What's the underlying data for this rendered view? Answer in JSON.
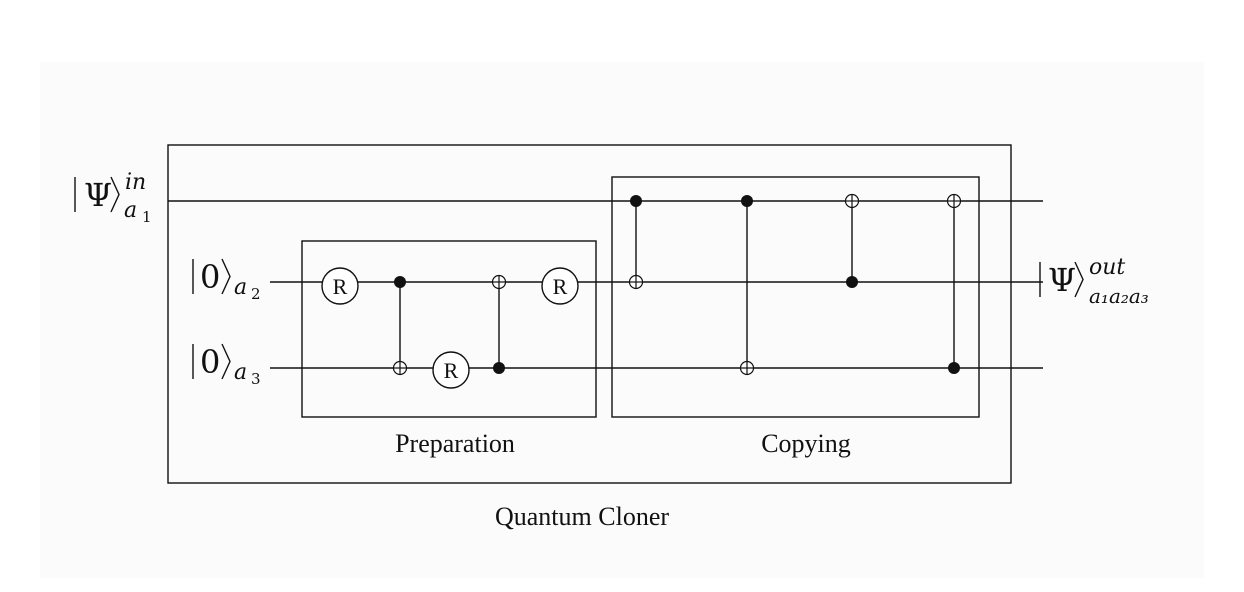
{
  "diagram": {
    "outer_box_label": "Quantum Cloner",
    "preparation_label": "Preparation",
    "copying_label": "Copying",
    "gate_label": "R",
    "input_a1": {
      "ket": "Ψ",
      "superscript": "in",
      "subscript": "a",
      "subscript_index": "1"
    },
    "input_a2": {
      "ket": "0",
      "subscript": "a",
      "subscript_index": "2"
    },
    "input_a3": {
      "ket": "0",
      "subscript": "a",
      "subscript_index": "3"
    },
    "output": {
      "ket": "Ψ",
      "superscript": "out",
      "subscript": "a₁a₂a₃"
    }
  },
  "colors": {
    "stroke": "#111111",
    "background": "#ffffff"
  }
}
